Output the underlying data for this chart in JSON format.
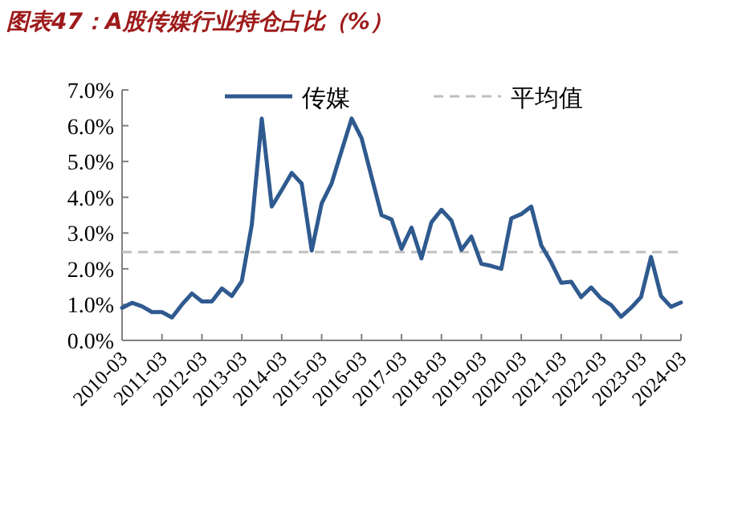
{
  "chart_data": {
    "type": "line",
    "title": "图表47：A股传媒行业持仓占比（%）",
    "categories": [
      "2010-03",
      null,
      null,
      null,
      "2011-03",
      null,
      null,
      null,
      "2012-03",
      null,
      null,
      null,
      "2013-03",
      null,
      null,
      null,
      "2014-03",
      null,
      null,
      null,
      "2015-03",
      null,
      null,
      null,
      "2016-03",
      null,
      null,
      null,
      "2017-03",
      null,
      null,
      null,
      "2018-03",
      null,
      null,
      null,
      "2019-03",
      null,
      null,
      null,
      "2020-03",
      null,
      null,
      null,
      "2021-03",
      null,
      null,
      null,
      "2022-03",
      null,
      null,
      null,
      "2023-03",
      null,
      null,
      null,
      "2024-03"
    ],
    "series": [
      {
        "name": "传媒",
        "color": "#2f5a8f",
        "values": [
          0.91,
          1.05,
          0.95,
          0.79,
          0.79,
          0.64,
          1.0,
          1.31,
          1.09,
          1.09,
          1.45,
          1.24,
          1.66,
          3.23,
          6.2,
          3.74,
          4.2,
          4.68,
          4.38,
          2.51,
          3.83,
          4.39,
          5.3,
          6.2,
          5.65,
          4.57,
          3.5,
          3.38,
          2.56,
          3.15,
          2.29,
          3.3,
          3.65,
          3.35,
          2.53,
          2.9,
          2.14,
          2.08,
          2.0,
          3.41,
          3.53,
          3.74,
          2.66,
          2.18,
          1.61,
          1.64,
          1.21,
          1.48,
          1.17,
          0.99,
          0.66,
          0.91,
          1.21,
          2.33,
          1.24,
          0.94,
          1.06
        ]
      }
    ],
    "ref_lines": [
      {
        "axis": "y",
        "value": 2.47,
        "label": "平均值",
        "color": "#bfbfbf",
        "line_style": "dashed"
      }
    ],
    "ylim": [
      0,
      7
    ],
    "yticks": [
      {
        "value": 0,
        "label": "0.0%"
      },
      {
        "value": 1,
        "label": "1.0%"
      },
      {
        "value": 2,
        "label": "2.0%"
      },
      {
        "value": 3,
        "label": "3.0%"
      },
      {
        "value": 4,
        "label": "4.0%"
      },
      {
        "value": 5,
        "label": "5.0%"
      },
      {
        "value": 6,
        "label": "6.0%"
      },
      {
        "value": 7,
        "label": "7.0%"
      }
    ],
    "legend": "top",
    "line_style": "solid"
  }
}
